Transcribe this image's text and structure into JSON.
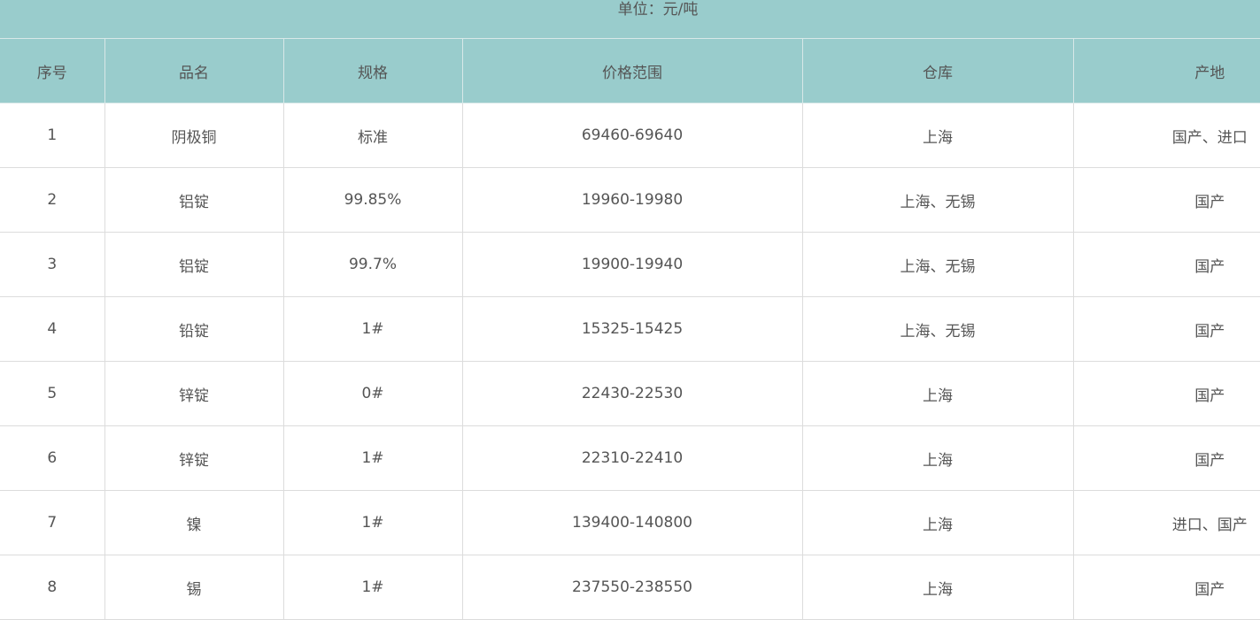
{
  "unit_label": "单位：元/吨",
  "colors": {
    "header_bg": "#99cccc",
    "text": "#555555",
    "grid": "#dcdcdc"
  },
  "columns": [
    "序号",
    "品名",
    "规格",
    "价格范围",
    "仓库",
    "产地"
  ],
  "rows": [
    [
      "1",
      "阴极铜",
      "标准",
      "69460-69640",
      "上海",
      "国产、进口"
    ],
    [
      "2",
      "铝锭",
      "99.85%",
      "19960-19980",
      "上海、无锡",
      "国产"
    ],
    [
      "3",
      "铝锭",
      "99.7%",
      "19900-19940",
      "上海、无锡",
      "国产"
    ],
    [
      "4",
      "铅锭",
      "1#",
      "15325-15425",
      "上海、无锡",
      "国产"
    ],
    [
      "5",
      "锌锭",
      "0#",
      "22430-22530",
      "上海",
      "国产"
    ],
    [
      "6",
      "锌锭",
      "1#",
      "22310-22410",
      "上海",
      "国产"
    ],
    [
      "7",
      "镍",
      "1#",
      "139400-140800",
      "上海",
      "进口、国产"
    ],
    [
      "8",
      "锡",
      "1#",
      "237550-238550",
      "上海",
      "国产"
    ]
  ]
}
